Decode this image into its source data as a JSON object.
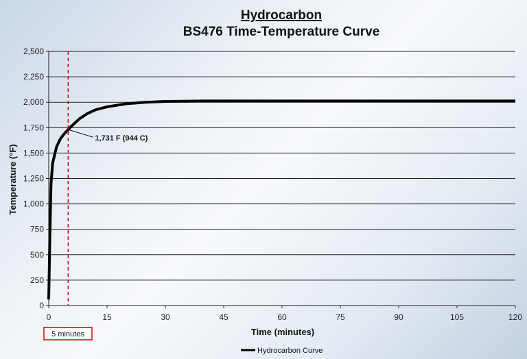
{
  "chart_data": {
    "type": "line",
    "title": "Hydrocarbon",
    "subtitle": "BS476 Time-Temperature Curve",
    "xlabel": "Time (minutes)",
    "ylabel": "Temperature (°F)",
    "xlim": [
      0,
      120
    ],
    "ylim": [
      0,
      2500
    ],
    "xticks": [
      0,
      15,
      30,
      45,
      60,
      75,
      90,
      105,
      120
    ],
    "xtick_labels": [
      "0",
      "15",
      "30",
      "45",
      "60",
      "75",
      "90",
      "105",
      "120"
    ],
    "yticks": [
      0,
      250,
      500,
      750,
      1000,
      1250,
      1500,
      1750,
      2000,
      2250,
      2500
    ],
    "ytick_labels": [
      "0",
      "250",
      "500",
      "750",
      "1,000",
      "1,250",
      "1,500",
      "1,750",
      "2,000",
      "2,250",
      "2,500"
    ],
    "grid": "horizontal",
    "legend_position": "bottom-center",
    "series": [
      {
        "name": "Hydrocarbon Curve",
        "color": "#000000",
        "x": [
          0,
          0.3,
          0.6,
          1,
          2,
          3,
          4,
          5,
          6,
          8,
          10,
          12,
          15,
          20,
          25,
          30,
          40,
          50,
          60,
          75,
          90,
          105,
          120
        ],
        "y": [
          60,
          700,
          1200,
          1400,
          1560,
          1640,
          1690,
          1731,
          1770,
          1840,
          1890,
          1925,
          1955,
          1985,
          2000,
          2008,
          2012,
          2012,
          2012,
          2012,
          2012,
          2012,
          2012
        ]
      }
    ],
    "marker_line": {
      "x": 5,
      "color": "#cc0000",
      "style": "dashed",
      "label": "5 minutes"
    },
    "annotation": {
      "x": 5,
      "y": 1731,
      "text": "1,731 F (944 C)"
    }
  }
}
